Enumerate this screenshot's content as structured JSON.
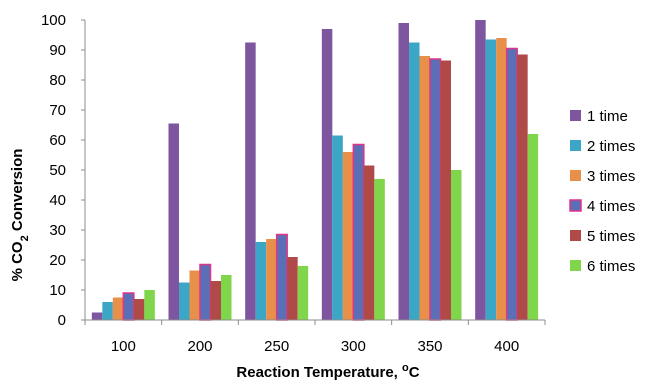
{
  "chart_data": {
    "type": "bar",
    "categories": [
      "100",
      "200",
      "250",
      "300",
      "350",
      "400"
    ],
    "series": [
      {
        "name": "1 time",
        "color": "#7E56A0",
        "values": [
          2.5,
          65.5,
          92.5,
          97,
          99,
          100
        ]
      },
      {
        "name": "2 times",
        "color": "#3CA6C6",
        "values": [
          6,
          12.5,
          26,
          61.5,
          92.5,
          93.5
        ]
      },
      {
        "name": "3 times",
        "color": "#E8904A",
        "values": [
          7.5,
          16.5,
          27,
          56,
          88,
          94
        ]
      },
      {
        "name": "4 times",
        "color": "#5A6FB5",
        "values": [
          9,
          18.5,
          28.5,
          58.5,
          87,
          90.5
        ]
      },
      {
        "name": "5 times",
        "color": "#B04A48",
        "values": [
          7,
          13,
          21,
          51.5,
          86.5,
          88.5
        ]
      },
      {
        "name": "6 times",
        "color": "#7FD64A",
        "values": [
          10,
          15,
          18,
          47,
          50,
          62
        ]
      }
    ],
    "highlight_border_series": "4 times",
    "highlight_border_color": "#E0338A",
    "xlabel": {
      "main": "Reaction Temperature, ",
      "sup": "o",
      "tail": "C"
    },
    "ylabel": {
      "main": "% CO",
      "sub": "2",
      "tail": " Conversion"
    },
    "ylim": [
      0,
      100
    ],
    "ytick_step": 10,
    "grid": false,
    "legend_position": "right"
  }
}
